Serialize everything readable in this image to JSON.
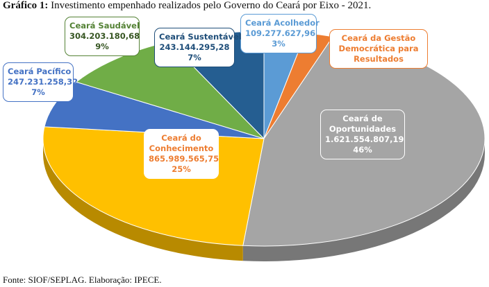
{
  "caption": {
    "prefix": "Gráfico 1:",
    "text": "Investimento empenhado realizados pelo Governo do Ceará por Eixo - 2021."
  },
  "source": "Fonte: SIOF/SEPLAG. Elaboração: IPECE.",
  "chart_data": {
    "type": "pie",
    "title": "Investimento empenhado realizados pelo Governo do Ceará por Eixo - 2021.",
    "three_d": true,
    "slices": [
      {
        "name": "Ceará Acolhedor",
        "value_text": "109.277.627,96",
        "value": 109277627.96,
        "percent_text": "3%",
        "percent": 3,
        "color": "#5B9BD5"
      },
      {
        "name": "Ceará da Gestão Democrática para Resultados",
        "value_text": "",
        "value": null,
        "percent_text": "",
        "percent": 2,
        "color": "#ED7D31"
      },
      {
        "name": "Ceará de Oportunidades",
        "value_text": "1.621.554.807,19",
        "value": 1621554807.19,
        "percent_text": "46%",
        "percent": 46,
        "color": "#A5A5A5"
      },
      {
        "name": "Ceará do Conhecimento",
        "value_text": "865.989.565,75",
        "value": 865989565.75,
        "percent_text": "25%",
        "percent": 25,
        "color": "#FFC000"
      },
      {
        "name": "Ceará Pacífico",
        "value_text": "247.231.258,32",
        "value": 247231258.32,
        "percent_text": "7%",
        "percent": 7,
        "color": "#4472C4"
      },
      {
        "name": "Ceará Saudável",
        "value_text": "304.203.180,68",
        "value": 304203180.68,
        "percent_text": "9%",
        "percent": 9,
        "color": "#70AD47"
      },
      {
        "name": "Ceará Sustentável",
        "value_text": "243.144.295,28",
        "value": 243144295.28,
        "percent_text": "7%",
        "percent": 7,
        "color": "#255E91"
      }
    ],
    "label_text_colors": {
      "Ceará Acolhedor": "#5B9BD5",
      "Ceará da Gestão Democrática para Resultados": "#ED7D31",
      "Ceará de Oportunidades": "#ffffff",
      "Ceará do Conhecimento": "#ED7D31",
      "Ceará Pacífico": "#4472C4",
      "Ceará Saudável": "#548235",
      "Ceará Sustentável": "#1F4E79"
    },
    "label_border_colors": {
      "Ceará Acolhedor": "#5B9BD5",
      "Ceará da Gestão Democrática para Resultados": "#ED7D31",
      "Ceará de Oportunidades": "#ffffff",
      "Ceará do Conhecimento": "#ffffff",
      "Ceará Pacífico": "#4472C4",
      "Ceará Saudável": "#548235",
      "Ceará Sustentável": "#1F4E79"
    },
    "value_text_colors": {
      "Ceará Saudável": "#375623",
      "Ceará do Conhecimento": "#ED7D31"
    },
    "label_fill_colors": {
      "Ceará de Oportunidades": "#A5A5A5"
    }
  }
}
